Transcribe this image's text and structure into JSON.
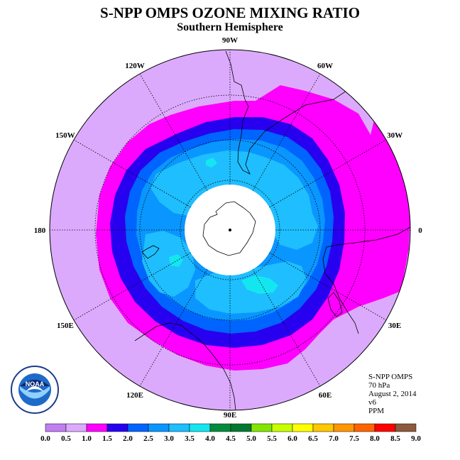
{
  "header": {
    "title": "S-NPP OMPS OZONE MIXING RATIO",
    "subtitle": "Southern Hemisphere"
  },
  "map": {
    "projection": "south-polar-stereographic",
    "longitude_labels": [
      {
        "text": "0",
        "lon": 0
      },
      {
        "text": "30E",
        "lon": 30
      },
      {
        "text": "60E",
        "lon": 60
      },
      {
        "text": "90E",
        "lon": 90
      },
      {
        "text": "120E",
        "lon": 120
      },
      {
        "text": "150E",
        "lon": 150
      },
      {
        "text": "180",
        "lon": 180
      },
      {
        "text": "150W",
        "lon": -150
      },
      {
        "text": "120W",
        "lon": -120
      },
      {
        "text": "90W",
        "lon": -90
      },
      {
        "text": "60W",
        "lon": -60
      },
      {
        "text": "30W",
        "lon": -30
      }
    ],
    "no_data_region": "polar night (white)"
  },
  "info": {
    "instrument": "S-NPP OMPS",
    "level": "70 hPa",
    "date": "August 2, 2014",
    "version": "v6",
    "units": "PPM"
  },
  "colorbar": {
    "ticks": [
      "0.0",
      "0.5",
      "1.0",
      "1.5",
      "2.0",
      "2.5",
      "3.0",
      "3.5",
      "4.0",
      "4.5",
      "5.0",
      "5.5",
      "6.0",
      "6.5",
      "7.0",
      "7.5",
      "8.0",
      "8.5",
      "9.0"
    ],
    "colors": [
      "#c07ef0",
      "#dcaafc",
      "#ff00ff",
      "#2800f0",
      "#0064ff",
      "#0a96ff",
      "#1ebeff",
      "#14e6f0",
      "#008c3c",
      "#007832",
      "#82e600",
      "#c8ff00",
      "#ffff00",
      "#ffc800",
      "#ff9600",
      "#ff6400",
      "#ff0000",
      "#8c5a3c"
    ]
  },
  "logo": {
    "text": "NOAA",
    "ring_text": "NATIONAL OCEANIC AND ATMOSPHERIC ADMINISTRATION · U.S. DEPARTMENT OF COMMERCE"
  }
}
